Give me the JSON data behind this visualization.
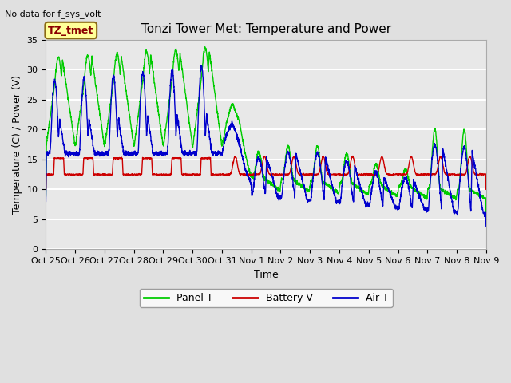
{
  "title": "Tonzi Tower Met: Temperature and Power",
  "no_data_text": "No data for f_sys_volt",
  "ylabel": "Temperature (C) / Power (V)",
  "xlabel": "Time",
  "legend_entries": [
    "Panel T",
    "Battery V",
    "Air T"
  ],
  "legend_colors": [
    "#00cc00",
    "#cc0000",
    "#0000cc"
  ],
  "tz_label": "TZ_tmet",
  "xlim": [
    0,
    15
  ],
  "ylim": [
    0,
    35
  ],
  "yticks": [
    0,
    5,
    10,
    15,
    20,
    25,
    30,
    35
  ],
  "xtick_labels": [
    "Oct 25",
    "Oct 26",
    "Oct 27",
    "Oct 28",
    "Oct 29",
    "Oct 30",
    "Oct 31",
    "Nov 1",
    "Nov 2",
    "Nov 3",
    "Nov 4",
    "Nov 5",
    "Nov 6",
    "Nov 7",
    "Nov 8",
    "Nov 9"
  ],
  "bg_color": "#e0e0e0",
  "plot_bg_color": "#e8e8e8",
  "grid_color": "#ffffff",
  "title_fontsize": 11,
  "label_fontsize": 9,
  "tick_fontsize": 8
}
